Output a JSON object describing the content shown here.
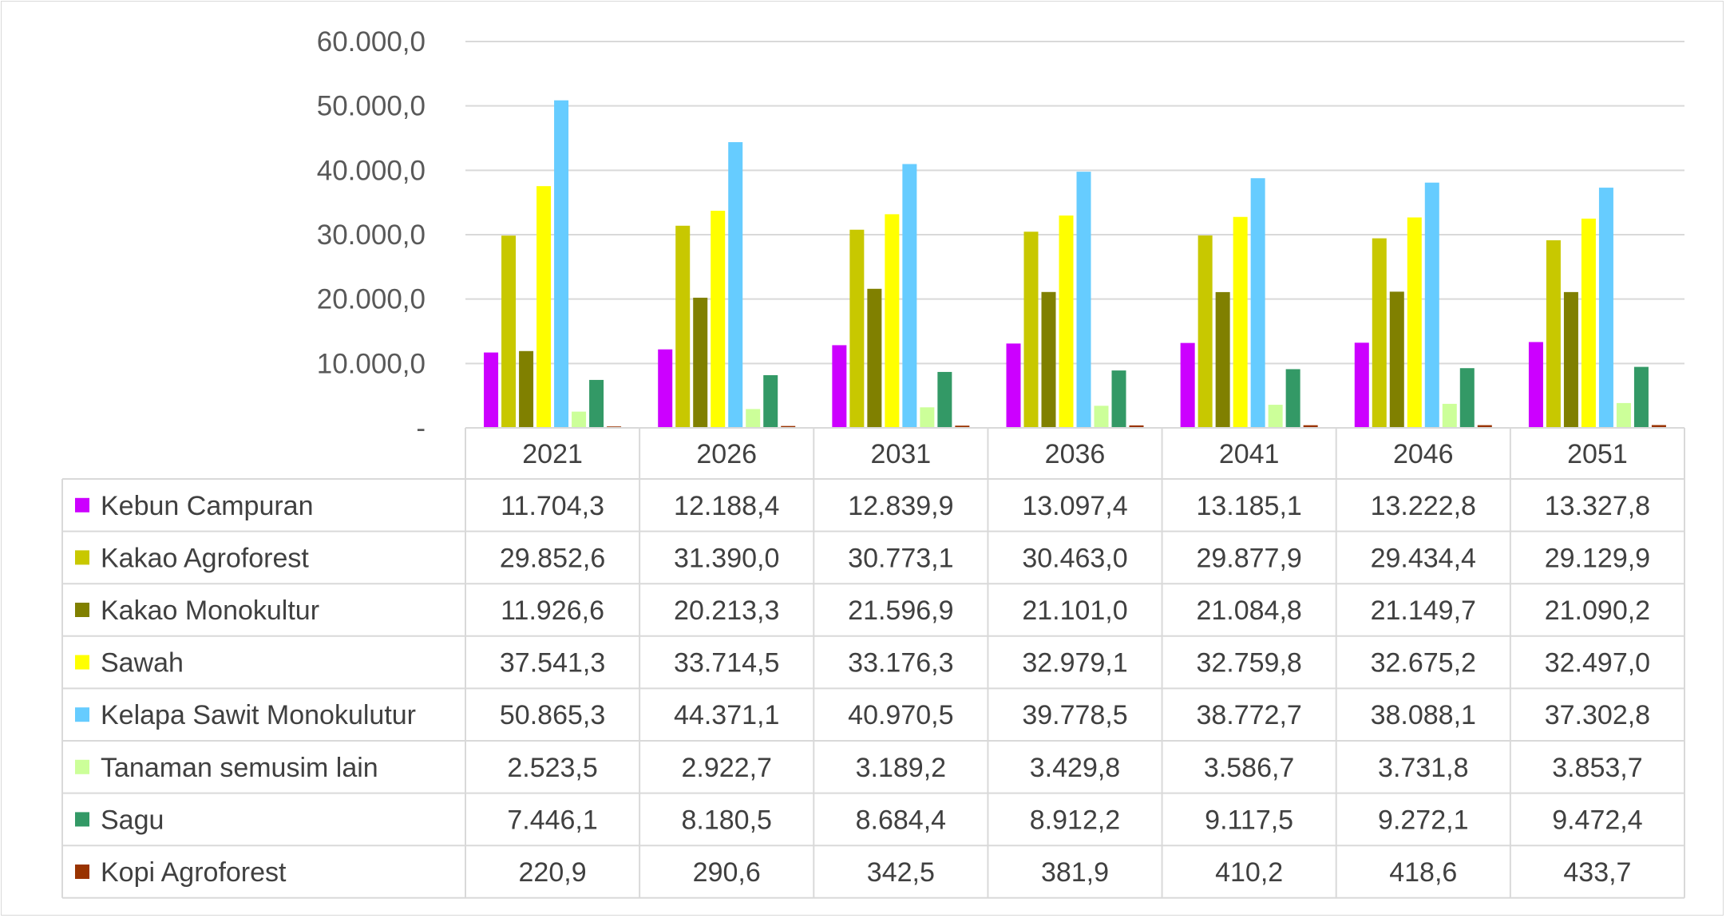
{
  "chart_data": {
    "type": "bar",
    "categories": [
      "2021",
      "2026",
      "2031",
      "2036",
      "2041",
      "2046",
      "2051"
    ],
    "ylim": [
      0,
      60000
    ],
    "yticks": [
      {
        "value": 0,
        "label": "-"
      },
      {
        "value": 10000,
        "label": "10.000,0"
      },
      {
        "value": 20000,
        "label": "20.000,0"
      },
      {
        "value": 30000,
        "label": "30.000,0"
      },
      {
        "value": 40000,
        "label": "40.000,0"
      },
      {
        "value": 50000,
        "label": "50.000,0"
      },
      {
        "value": 60000,
        "label": "60.000,0"
      }
    ],
    "grid": true,
    "legend": "data-table",
    "series": [
      {
        "name": "Kebun Campuran",
        "color": "#cc00ff",
        "values": [
          11704.3,
          12188.4,
          12839.9,
          13097.4,
          13185.1,
          13222.8,
          13327.8
        ],
        "labels": [
          "11.704,3",
          "12.188,4",
          "12.839,9",
          "13.097,4",
          "13.185,1",
          "13.222,8",
          "13.327,8"
        ]
      },
      {
        "name": "Kakao Agroforest",
        "color": "#c8c800",
        "values": [
          29852.6,
          31390.0,
          30773.1,
          30463.0,
          29877.9,
          29434.4,
          29129.9
        ],
        "labels": [
          "29.852,6",
          "31.390,0",
          "30.773,1",
          "30.463,0",
          "29.877,9",
          "29.434,4",
          "29.129,9"
        ]
      },
      {
        "name": "Kakao Monokultur",
        "color": "#808000",
        "values": [
          11926.6,
          20213.3,
          21596.9,
          21101.0,
          21084.8,
          21149.7,
          21090.2
        ],
        "labels": [
          "11.926,6",
          "20.213,3",
          "21.596,9",
          "21.101,0",
          "21.084,8",
          "21.149,7",
          "21.090,2"
        ]
      },
      {
        "name": "Sawah",
        "color": "#ffff00",
        "values": [
          37541.3,
          33714.5,
          33176.3,
          32979.1,
          32759.8,
          32675.2,
          32497.0
        ],
        "labels": [
          "37.541,3",
          "33.714,5",
          "33.176,3",
          "32.979,1",
          "32.759,8",
          "32.675,2",
          "32.497,0"
        ]
      },
      {
        "name": "Kelapa Sawit Monokulutur",
        "color": "#66ccff",
        "values": [
          50865.3,
          44371.1,
          40970.5,
          39778.5,
          38772.7,
          38088.1,
          37302.8
        ],
        "labels": [
          "50.865,3",
          "44.371,1",
          "40.970,5",
          "39.778,5",
          "38.772,7",
          "38.088,1",
          "37.302,8"
        ]
      },
      {
        "name": "Tanaman semusim lain",
        "color": "#ccff99",
        "values": [
          2523.5,
          2922.7,
          3189.2,
          3429.8,
          3586.7,
          3731.8,
          3853.7
        ],
        "labels": [
          "2.523,5",
          "2.922,7",
          "3.189,2",
          "3.429,8",
          "3.586,7",
          "3.731,8",
          "3.853,7"
        ]
      },
      {
        "name": "Sagu",
        "color": "#339966",
        "values": [
          7446.1,
          8180.5,
          8684.4,
          8912.2,
          9117.5,
          9272.1,
          9472.4
        ],
        "labels": [
          "7.446,1",
          "8.180,5",
          "8.684,4",
          "8.912,2",
          "9.117,5",
          "9.272,1",
          "9.472,4"
        ]
      },
      {
        "name": "Kopi Agroforest",
        "color": "#993300",
        "values": [
          220.9,
          290.6,
          342.5,
          381.9,
          410.2,
          418.6,
          433.7
        ],
        "labels": [
          "220,9",
          "290,6",
          "342,5",
          "381,9",
          "410,2",
          "418,6",
          "433,7"
        ]
      }
    ]
  }
}
